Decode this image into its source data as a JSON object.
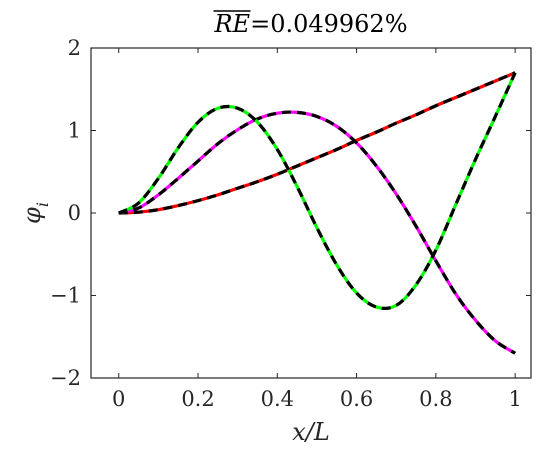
{
  "chart_data": {
    "type": "line",
    "title_main": "RE",
    "title_rest": "=0.049962%",
    "xlabel": "x/L",
    "ylabel_base": "φ",
    "ylabel_sub": "i",
    "xlim": [
      -0.07,
      1.04
    ],
    "ylim": [
      -2,
      2
    ],
    "xticks": [
      0,
      0.2,
      0.4,
      0.6,
      0.8,
      1
    ],
    "xtick_labels": [
      "0",
      "0.2",
      "0.4",
      "0.6",
      "0.8",
      "1"
    ],
    "yticks": [
      -2,
      -1,
      0,
      1,
      2
    ],
    "ytick_labels": [
      "−2",
      "−1",
      "0",
      "1",
      "2"
    ],
    "grid": false,
    "series": [
      {
        "color": "#ff0000",
        "x": [
          0,
          0.05,
          0.1,
          0.15,
          0.2,
          0.25,
          0.3,
          0.35,
          0.4,
          0.45,
          0.5,
          0.55,
          0.6,
          0.65,
          0.7,
          0.75,
          0.8,
          0.85,
          0.9,
          0.95,
          1
        ],
        "y": [
          0,
          0.01,
          0.04,
          0.09,
          0.15,
          0.22,
          0.3,
          0.38,
          0.47,
          0.57,
          0.67,
          0.77,
          0.88,
          0.98,
          1.09,
          1.19,
          1.3,
          1.4,
          1.5,
          1.6,
          1.7
        ]
      },
      {
        "color": "#ff00ff",
        "x": [
          0,
          0.05,
          0.1,
          0.15,
          0.2,
          0.25,
          0.3,
          0.35,
          0.4,
          0.45,
          0.5,
          0.55,
          0.6,
          0.65,
          0.7,
          0.75,
          0.8,
          0.85,
          0.9,
          0.95,
          1
        ],
        "y": [
          0,
          0.06,
          0.22,
          0.42,
          0.63,
          0.84,
          1.01,
          1.14,
          1.21,
          1.22,
          1.17,
          1.05,
          0.85,
          0.57,
          0.23,
          -0.16,
          -0.58,
          -0.98,
          -1.3,
          -1.55,
          -1.7
        ]
      },
      {
        "color": "#00ff00",
        "x": [
          0,
          0.05,
          0.1,
          0.15,
          0.2,
          0.25,
          0.3,
          0.35,
          0.4,
          0.45,
          0.5,
          0.55,
          0.6,
          0.65,
          0.7,
          0.75,
          0.8,
          0.85,
          0.9,
          0.95,
          1
        ],
        "y": [
          0,
          0.12,
          0.42,
          0.79,
          1.1,
          1.27,
          1.27,
          1.1,
          0.77,
          0.32,
          -0.18,
          -0.63,
          -0.97,
          -1.14,
          -1.12,
          -0.87,
          -0.45,
          0.1,
          0.65,
          1.17,
          1.7
        ]
      }
    ]
  }
}
